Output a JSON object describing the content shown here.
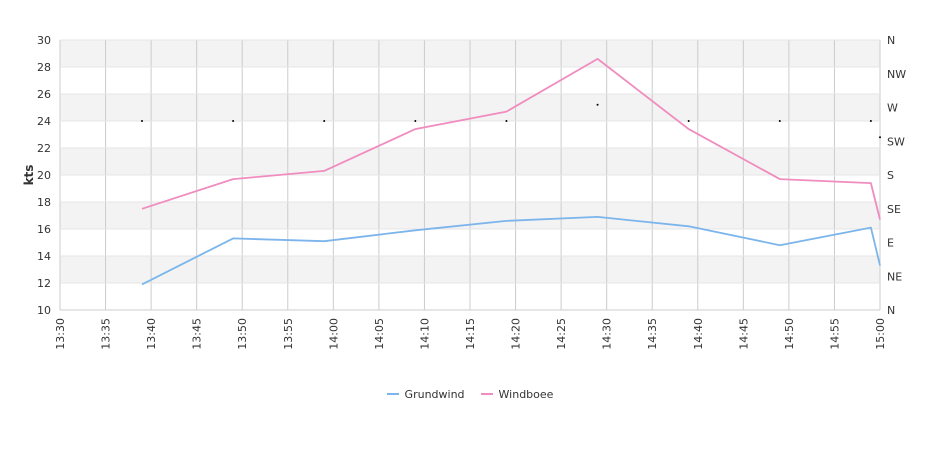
{
  "chart_data": {
    "type": "line",
    "ylabel": "kts",
    "ylim": [
      10,
      30
    ],
    "yticks": [
      "10",
      "12",
      "14",
      "16",
      "18",
      "20",
      "22",
      "24",
      "26",
      "28",
      "30"
    ],
    "xticks": [
      "13:30",
      "13:35",
      "13:40",
      "13:45",
      "13:50",
      "13:55",
      "14:00",
      "14:05",
      "14:10",
      "14:15",
      "14:20",
      "14:25",
      "14:30",
      "14:35",
      "14:40",
      "14:45",
      "14:50",
      "14:55",
      "15:00"
    ],
    "y2ticks": [
      "N",
      "NE",
      "E",
      "SE",
      "S",
      "SW",
      "W",
      "NW",
      "N"
    ],
    "x": [
      "13:39",
      "13:49",
      "13:59",
      "14:09",
      "14:19",
      "14:29",
      "14:39",
      "14:49",
      "14:59",
      "15:00"
    ],
    "series": [
      {
        "name": "Grundwind",
        "color": "#7cb5ec",
        "values": [
          11.9,
          15.3,
          15.1,
          15.9,
          16.6,
          16.9,
          16.2,
          14.8,
          16.1,
          13.3
        ]
      },
      {
        "name": "Windboee",
        "color": "#f08cbf",
        "values": [
          17.5,
          19.7,
          20.3,
          23.4,
          24.7,
          28.6,
          23.4,
          19.7,
          19.4,
          16.7
        ]
      }
    ],
    "direction_points": {
      "x": [
        "13:39",
        "13:49",
        "13:59",
        "14:09",
        "14:19",
        "14:29",
        "14:39",
        "14:49",
        "14:59",
        "15:00"
      ],
      "values": [
        24,
        24,
        24,
        24,
        24,
        25.2,
        24,
        24,
        24,
        22.8
      ]
    },
    "grid": true,
    "legend": "bottom-center"
  }
}
